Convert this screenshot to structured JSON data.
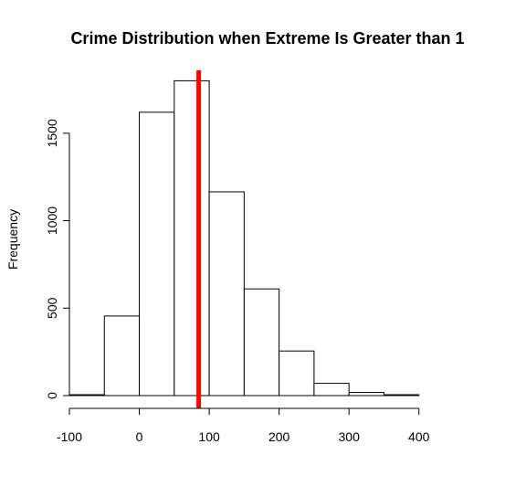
{
  "chart_data": {
    "type": "bar",
    "title": "Crime Distribution when Extreme Is Greater than 1",
    "xlabel": "",
    "ylabel": "Frequency",
    "bin_edges": [
      -100,
      -50,
      0,
      50,
      100,
      150,
      200,
      250,
      300,
      350,
      400
    ],
    "values": [
      5,
      455,
      1620,
      1800,
      1165,
      610,
      255,
      70,
      18,
      5
    ],
    "xlim": [
      -100,
      450
    ],
    "ylim": [
      0,
      1870
    ],
    "x_ticks": [
      -100,
      0,
      100,
      200,
      300,
      400
    ],
    "y_ticks": [
      0,
      500,
      1000,
      1500
    ],
    "reference_line": {
      "x": 85,
      "color": "#ff0000"
    },
    "bar_fill": "#ffffff",
    "bar_stroke": "#000000",
    "grid": false,
    "legend": "none"
  }
}
